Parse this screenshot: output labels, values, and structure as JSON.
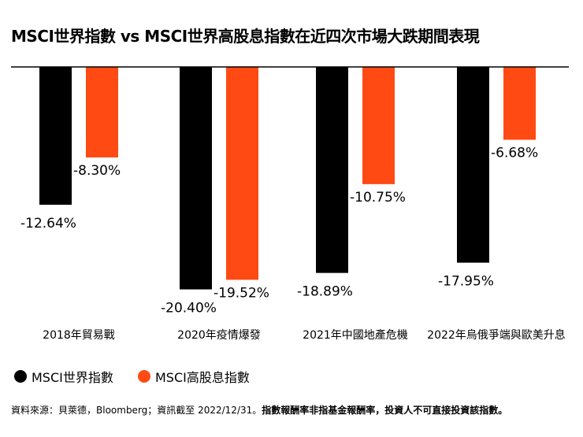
{
  "chart_data": {
    "type": "bar",
    "title": "MSCI世界指數 vs MSCI世界高股息指數在近四次市場大跌期間表現",
    "categories": [
      "2018年貿易戰",
      "2020年疫情爆發",
      "2021年中國地產危機",
      "2022年烏俄爭端與歐美升息"
    ],
    "series": [
      {
        "name": "MSCI世界指數",
        "color": "#000000",
        "values": [
          -12.64,
          -20.4,
          -18.89,
          -17.95
        ],
        "labels": [
          "-12.64%",
          "-20.40%",
          "-18.89%",
          "-17.95%"
        ]
      },
      {
        "name": "MSCI高股息指數",
        "color": "#ff4a14",
        "values": [
          -8.3,
          -19.52,
          -10.75,
          -6.68
        ],
        "labels": [
          "-8.30%",
          "-19.52%",
          "-10.75%",
          "-6.68%"
        ]
      }
    ],
    "ylim": [
      -22,
      0
    ],
    "legend": "bottom-left"
  },
  "footer": {
    "source": "資料來源：貝萊德，Bloomberg；資訊截至 2022/12/31。",
    "disclaimer": "指數報酬率非指基金報酬率，投資人不可直接投資該指數。"
  }
}
